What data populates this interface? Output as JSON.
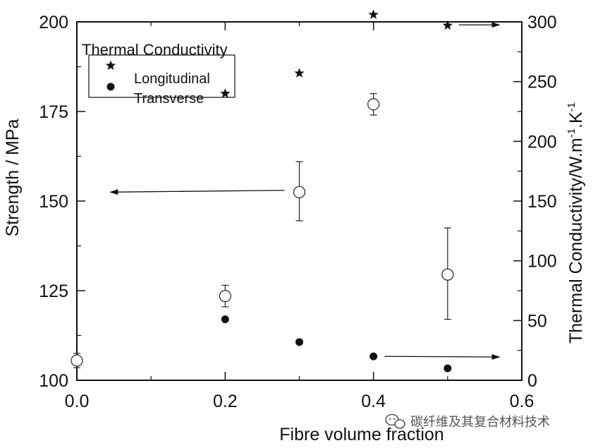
{
  "chart_data": {
    "type": "scatter",
    "xlabel": "Fibre volume fraction",
    "ylabel_left": "Strength / MPa",
    "ylabel_right_parts": [
      "Thermal Conductivity/W.m",
      "-1",
      ".K",
      "-1"
    ],
    "xlim": [
      0.0,
      0.6
    ],
    "ylim_left": [
      100,
      200
    ],
    "ylim_right": [
      0,
      300
    ],
    "x_ticks": [
      "0.0",
      "0.2",
      "0.4",
      "0.6"
    ],
    "x_tick_values": [
      0.0,
      0.2,
      0.4,
      0.6
    ],
    "y_left_ticks": [
      "100",
      "125",
      "150",
      "175",
      "200"
    ],
    "y_left_tick_values": [
      100,
      125,
      150,
      175,
      200
    ],
    "y_right_ticks": [
      "0",
      "50",
      "100",
      "150",
      "200",
      "250",
      "300"
    ],
    "y_right_tick_values": [
      0,
      50,
      100,
      150,
      200,
      250,
      300
    ],
    "legend": {
      "title": "Thermal Conductivity",
      "entries": [
        "Longitudinal",
        "Transverse"
      ],
      "placement": "top-left"
    },
    "series": [
      {
        "name": "Strength",
        "axis": "left",
        "marker": "open-circle",
        "points": [
          {
            "x": 0.0,
            "y": 105.5,
            "err_low": 103.5,
            "err_high": 107.5
          },
          {
            "x": 0.2,
            "y": 123.5,
            "err_low": 120.5,
            "err_high": 126.5
          },
          {
            "x": 0.3,
            "y": 152.5,
            "err_low": 144.5,
            "err_high": 161.0
          },
          {
            "x": 0.4,
            "y": 177.0,
            "err_low": 174.0,
            "err_high": 180.0
          },
          {
            "x": 0.5,
            "y": 129.5,
            "err_low": 117.0,
            "err_high": 142.5
          }
        ]
      },
      {
        "name": "Longitudinal",
        "axis": "right",
        "marker": "filled-star",
        "points": [
          {
            "x": 0.2,
            "y": 240
          },
          {
            "x": 0.3,
            "y": 257
          },
          {
            "x": 0.4,
            "y": 306
          },
          {
            "x": 0.5,
            "y": 297
          }
        ]
      },
      {
        "name": "Transverse",
        "axis": "right",
        "marker": "filled-circle",
        "points": [
          {
            "x": 0.2,
            "y": 51
          },
          {
            "x": 0.3,
            "y": 32
          },
          {
            "x": 0.4,
            "y": 20
          },
          {
            "x": 0.5,
            "y": 10
          }
        ]
      }
    ],
    "annotations": [
      {
        "kind": "arrow",
        "axis": "left",
        "from": [
          0.28,
          153
        ],
        "to": [
          0.045,
          152.5
        ]
      },
      {
        "kind": "arrow",
        "axis": "right",
        "from": [
          0.515,
          297.5
        ],
        "to": [
          0.57,
          297.5
        ]
      },
      {
        "kind": "arrow",
        "axis": "right",
        "from": [
          0.415,
          20
        ],
        "to": [
          0.57,
          19.5
        ]
      }
    ]
  },
  "watermark": {
    "text": "碳纤维及其复合材料技术",
    "icon": "wechat-icon"
  }
}
